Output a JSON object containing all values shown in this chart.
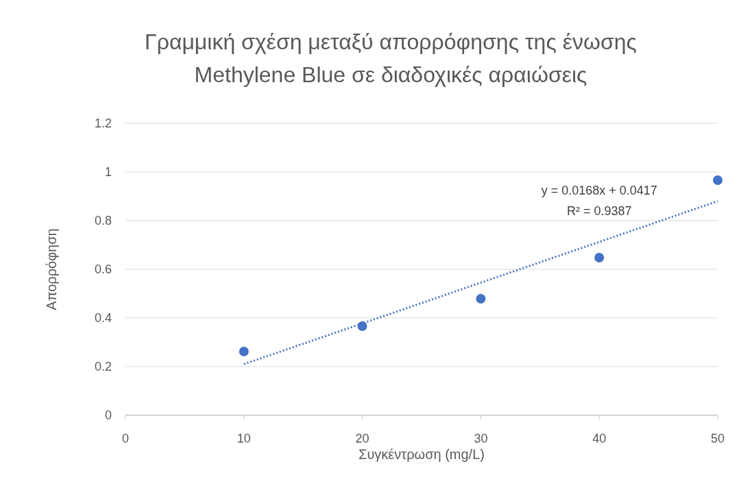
{
  "chart_data": {
    "type": "scatter",
    "title": "Γραμμική σχέση μεταξύ απορρόφησης της ένωσης Methylene Blue σε διαδοχικές αραιώσεις",
    "xlabel": "Συγκέντρωση (mg/L)",
    "ylabel": "Απορρόφηση",
    "x": [
      10,
      20,
      30,
      40,
      50
    ],
    "series": [
      {
        "color": "#4472c4",
        "values": [
          0.262,
          0.366,
          0.479,
          0.648,
          0.966
        ],
        "marker": "circle"
      },
      {
        "type": "line",
        "color": "#4472c4",
        "x": [
          10,
          50
        ],
        "values": [
          0.21,
          0.88
        ],
        "line_style": "dotted"
      }
    ],
    "annotations": [
      "y = 0.0168x + 0.0417",
      "R² = 0.9387"
    ],
    "xlim": [
      0,
      50
    ],
    "ylim": [
      0,
      1.2
    ],
    "xticks": [
      0,
      10,
      20,
      30,
      40,
      50
    ],
    "yticks": [
      0,
      0.2,
      0.4,
      0.6,
      0.8,
      1,
      1.2
    ],
    "grid": "y"
  }
}
